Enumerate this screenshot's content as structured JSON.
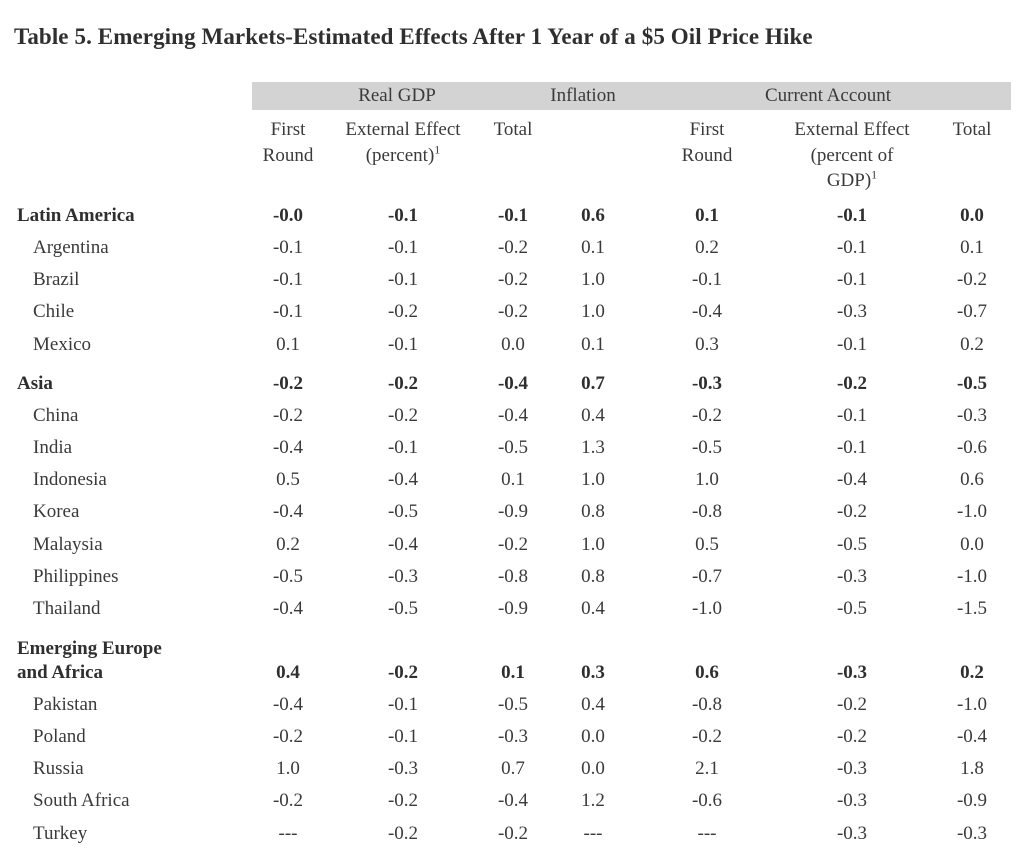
{
  "title": "Table 5. Emerging Markets-Estimated Effects After 1 Year of a $5 Oil Price Hike",
  "groups": {
    "real_gdp": "Real GDP",
    "inflation": "Inflation",
    "current_account": "Current Account"
  },
  "subheaders": {
    "gdp_first_l1": "First",
    "gdp_first_l2": "Round",
    "gdp_ext_l1": "External Effect",
    "gdp_ext_l2": "(percent)",
    "gdp_ext_fn": "1",
    "gdp_total": "Total",
    "ca_first_l1": "First",
    "ca_first_l2": "Round",
    "ca_ext_l1": "External Effect",
    "ca_ext_l2": "(percent of",
    "ca_ext_l3": "GDP)",
    "ca_ext_fn": "1",
    "ca_total": "Total"
  },
  "rows": [
    {
      "label": "Latin America",
      "type": "group",
      "v": [
        "-0.0",
        "-0.1",
        "-0.1",
        "0.6",
        "0.1",
        "-0.1",
        "0.0"
      ]
    },
    {
      "label": "Argentina",
      "type": "country",
      "v": [
        "-0.1",
        "-0.1",
        "-0.2",
        "0.1",
        "0.2",
        "-0.1",
        "0.1"
      ]
    },
    {
      "label": "Brazil",
      "type": "country",
      "v": [
        "-0.1",
        "-0.1",
        "-0.2",
        "1.0",
        "-0.1",
        "-0.1",
        "-0.2"
      ]
    },
    {
      "label": "Chile",
      "type": "country",
      "v": [
        "-0.1",
        "-0.2",
        "-0.2",
        "1.0",
        "-0.4",
        "-0.3",
        "-0.7"
      ]
    },
    {
      "label": "Mexico",
      "type": "country",
      "v": [
        "0.1",
        "-0.1",
        "0.0",
        "0.1",
        "0.3",
        "-0.1",
        "0.2"
      ]
    },
    {
      "label": "Asia",
      "type": "group",
      "v": [
        "-0.2",
        "-0.2",
        "-0.4",
        "0.7",
        "-0.3",
        "-0.2",
        "-0.5"
      ]
    },
    {
      "label": "China",
      "type": "country",
      "v": [
        "-0.2",
        "-0.2",
        "-0.4",
        "0.4",
        "-0.2",
        "-0.1",
        "-0.3"
      ]
    },
    {
      "label": "India",
      "type": "country",
      "v": [
        "-0.4",
        "-0.1",
        "-0.5",
        "1.3",
        "-0.5",
        "-0.1",
        "-0.6"
      ]
    },
    {
      "label": "Indonesia",
      "type": "country",
      "v": [
        "0.5",
        "-0.4",
        "0.1",
        "1.0",
        "1.0",
        "-0.4",
        "0.6"
      ]
    },
    {
      "label": "Korea",
      "type": "country",
      "v": [
        "-0.4",
        "-0.5",
        "-0.9",
        "0.8",
        "-0.8",
        "-0.2",
        "-1.0"
      ]
    },
    {
      "label": "Malaysia",
      "type": "country",
      "v": [
        "0.2",
        "-0.4",
        "-0.2",
        "1.0",
        "0.5",
        "-0.5",
        "0.0"
      ]
    },
    {
      "label": "Philippines",
      "type": "country",
      "v": [
        "-0.5",
        "-0.3",
        "-0.8",
        "0.8",
        "-0.7",
        "-0.3",
        "-1.0"
      ]
    },
    {
      "label": "Thailand",
      "type": "country",
      "v": [
        "-0.4",
        "-0.5",
        "-0.9",
        "0.4",
        "-1.0",
        "-0.5",
        "-1.5"
      ]
    },
    {
      "label_l1": "Emerging Europe",
      "label": "and Africa",
      "type": "group",
      "v": [
        "0.4",
        "-0.2",
        "0.1",
        "0.3",
        "0.6",
        "-0.3",
        "0.2"
      ]
    },
    {
      "label": "Pakistan",
      "type": "country",
      "v": [
        "-0.4",
        "-0.1",
        "-0.5",
        "0.4",
        "-0.8",
        "-0.2",
        "-1.0"
      ]
    },
    {
      "label": "Poland",
      "type": "country",
      "v": [
        "-0.2",
        "-0.1",
        "-0.3",
        "0.0",
        "-0.2",
        "-0.2",
        "-0.4"
      ]
    },
    {
      "label": "Russia",
      "type": "country",
      "v": [
        "1.0",
        "-0.3",
        "0.7",
        "0.0",
        "2.1",
        "-0.3",
        "1.8"
      ]
    },
    {
      "label": "South Africa",
      "type": "country",
      "v": [
        "-0.2",
        "-0.2",
        "-0.4",
        "1.2",
        "-0.6",
        "-0.3",
        "-0.9"
      ]
    },
    {
      "label": "Turkey",
      "type": "country",
      "v": [
        "---",
        "-0.2",
        "-0.2",
        "---",
        "---",
        "-0.3",
        "-0.3"
      ]
    }
  ]
}
